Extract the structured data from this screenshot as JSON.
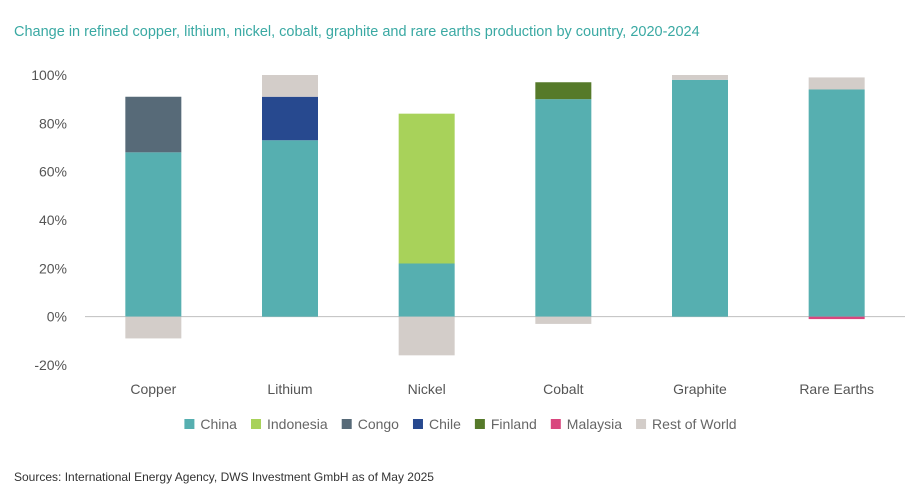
{
  "title": "Change in refined copper, lithium, nickel, cobalt, graphite and rare earths production by country, 2020-2024",
  "source": "Sources: International Energy Agency, DWS Investment GmbH as of May 2025",
  "chart_data": {
    "type": "bar",
    "stacked": true,
    "categories": [
      "Copper",
      "Lithium",
      "Nickel",
      "Cobalt",
      "Graphite",
      "Rare Earths"
    ],
    "ylim": [
      -20,
      100
    ],
    "yticks": [
      -20,
      0,
      20,
      40,
      60,
      80,
      100
    ],
    "ytick_labels": [
      "-20%",
      "0%",
      "20%",
      "40%",
      "60%",
      "80%",
      "100%"
    ],
    "legend_position": "bottom",
    "grid": false,
    "series": [
      {
        "name": "China",
        "color": "#56afb0",
        "values": [
          68,
          73,
          22,
          90,
          98,
          94
        ]
      },
      {
        "name": "Indonesia",
        "color": "#a8d25a",
        "values": [
          0,
          0,
          62,
          0,
          0,
          0
        ]
      },
      {
        "name": "Congo",
        "color": "#576a78",
        "values": [
          23,
          0,
          0,
          0,
          0,
          0
        ]
      },
      {
        "name": "Chile",
        "color": "#27498f",
        "values": [
          0,
          18,
          0,
          0,
          0,
          0
        ]
      },
      {
        "name": "Finland",
        "color": "#567a2a",
        "values": [
          0,
          0,
          0,
          7,
          0,
          0
        ]
      },
      {
        "name": "Malaysia",
        "color": "#d9467e",
        "values": [
          0,
          0,
          0,
          0,
          0,
          -1
        ]
      },
      {
        "name": "Rest of World",
        "color": "#d3cdc9",
        "values": [
          -9,
          9,
          -16,
          -3,
          2,
          5
        ]
      }
    ]
  }
}
